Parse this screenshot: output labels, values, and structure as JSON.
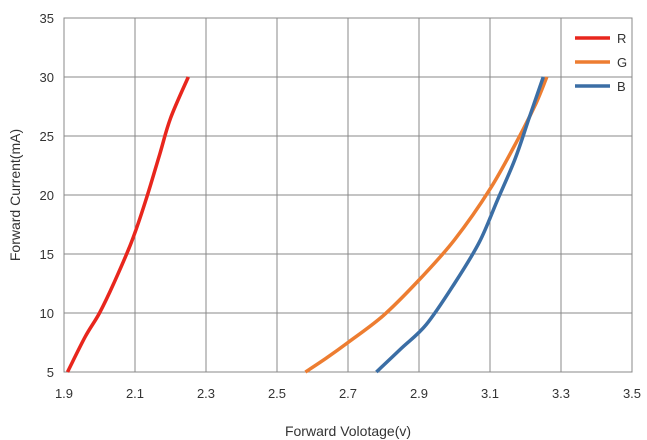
{
  "chart_data": {
    "type": "line",
    "xlabel": "Forward Volotage(v)",
    "ylabel": "Forward Current(mA)",
    "xlim": [
      1.9,
      3.5
    ],
    "ylim": [
      5,
      35
    ],
    "x_ticks": [
      "1.9",
      "2.1",
      "2.3",
      "2.5",
      "2.7",
      "2.9",
      "3.1",
      "3.3",
      "3.5"
    ],
    "y_ticks": [
      "5",
      "10",
      "15",
      "20",
      "25",
      "30",
      "35"
    ],
    "grid": true,
    "legend_position": "top-right",
    "series": [
      {
        "name": "R",
        "color": "#e8261d",
        "points": [
          [
            1.91,
            5
          ],
          [
            1.96,
            8
          ],
          [
            2.0,
            10
          ],
          [
            2.04,
            12.5
          ],
          [
            2.09,
            16
          ],
          [
            2.13,
            19.5
          ],
          [
            2.17,
            23.5
          ],
          [
            2.2,
            26.5
          ],
          [
            2.25,
            30
          ]
        ]
      },
      {
        "name": "G",
        "color": "#ed7d31",
        "points": [
          [
            2.58,
            5
          ],
          [
            2.64,
            6.2
          ],
          [
            2.7,
            7.5
          ],
          [
            2.8,
            9.8
          ],
          [
            2.9,
            12.8
          ],
          [
            3.0,
            16.2
          ],
          [
            3.1,
            20.5
          ],
          [
            3.18,
            24.8
          ],
          [
            3.23,
            27.8
          ],
          [
            3.26,
            30
          ]
        ]
      },
      {
        "name": "B",
        "color": "#3b6ea5",
        "points": [
          [
            2.78,
            5
          ],
          [
            2.85,
            7
          ],
          [
            2.92,
            9
          ],
          [
            3.0,
            12.5
          ],
          [
            3.07,
            16
          ],
          [
            3.12,
            19.5
          ],
          [
            3.17,
            23
          ],
          [
            3.21,
            26.5
          ],
          [
            3.25,
            30
          ]
        ]
      }
    ]
  }
}
